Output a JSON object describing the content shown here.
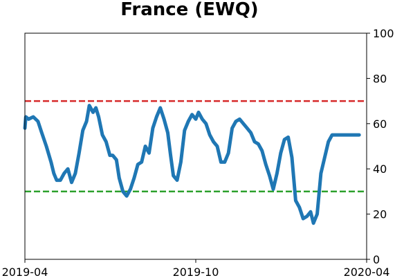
{
  "chart_data": {
    "type": "line",
    "title": "France (EWQ)",
    "xlabel": "",
    "ylabel": "",
    "x_ticks": [
      "2019-04",
      "2019-10",
      "2020-04"
    ],
    "y_ticks": [
      0,
      20,
      40,
      60,
      80,
      100
    ],
    "y_axis_side": "right",
    "xlim": [
      "2019-04-01",
      "2020-04-01"
    ],
    "ylim": [
      0,
      100
    ],
    "grid": false,
    "reference_lines": [
      {
        "value": 70,
        "color": "#d62728",
        "style": "dashed"
      },
      {
        "value": 30,
        "color": "#2ca02c",
        "style": "dashed"
      }
    ],
    "series": [
      {
        "color": "#1f77b4",
        "x": [
          "2019-04-01",
          "2019-04-02",
          "2019-04-05",
          "2019-04-10",
          "2019-04-15",
          "2019-04-19",
          "2019-04-24",
          "2019-04-29",
          "2019-05-02",
          "2019-05-05",
          "2019-05-09",
          "2019-05-13",
          "2019-05-17",
          "2019-05-21",
          "2019-05-25",
          "2019-05-29",
          "2019-06-02",
          "2019-06-06",
          "2019-06-09",
          "2019-06-13",
          "2019-06-16",
          "2019-06-19",
          "2019-06-23",
          "2019-06-27",
          "2019-07-01",
          "2019-07-04",
          "2019-07-08",
          "2019-07-11",
          "2019-07-15",
          "2019-07-19",
          "2019-07-23",
          "2019-07-27",
          "2019-07-31",
          "2019-08-04",
          "2019-08-08",
          "2019-08-12",
          "2019-08-16",
          "2019-08-20",
          "2019-08-24",
          "2019-08-28",
          "2019-09-01",
          "2019-09-04",
          "2019-09-07",
          "2019-09-11",
          "2019-09-15",
          "2019-09-19",
          "2019-09-23",
          "2019-09-27",
          "2019-10-01",
          "2019-10-04",
          "2019-10-08",
          "2019-10-12",
          "2019-10-16",
          "2019-10-20",
          "2019-10-24",
          "2019-10-28",
          "2019-11-01",
          "2019-11-05",
          "2019-11-09",
          "2019-11-13",
          "2019-11-17",
          "2019-11-21",
          "2019-11-25",
          "2019-11-29",
          "2019-12-03",
          "2019-12-07",
          "2019-12-11",
          "2019-12-15",
          "2019-12-19",
          "2019-12-23",
          "2019-12-27",
          "2019-12-31",
          "2020-01-04",
          "2020-01-08",
          "2020-01-12",
          "2020-01-16",
          "2020-01-20",
          "2020-01-24",
          "2020-01-28",
          "2020-02-01",
          "2020-02-04",
          "2020-02-08",
          "2020-02-12",
          "2020-02-16",
          "2020-02-20",
          "2020-02-24",
          "2020-02-28",
          "2020-03-03",
          "2020-03-07",
          "2020-03-11",
          "2020-03-15",
          "2020-03-19",
          "2020-03-24"
        ],
        "values": [
          58,
          63,
          62,
          63,
          61,
          56,
          50,
          43,
          38,
          35,
          35,
          38,
          40,
          34,
          38,
          47,
          57,
          61,
          68,
          65,
          67,
          63,
          55,
          52,
          46,
          46,
          44,
          36,
          30,
          28,
          31,
          36,
          42,
          43,
          50,
          47,
          58,
          63,
          67,
          62,
          56,
          46,
          37,
          35,
          43,
          57,
          61,
          64,
          62,
          65,
          62,
          60,
          55,
          52,
          50,
          43,
          43,
          47,
          58,
          61,
          62,
          60,
          58,
          56,
          52,
          51,
          48,
          42,
          37,
          31,
          38,
          47,
          53,
          54,
          45,
          26,
          23,
          18,
          19,
          21,
          16,
          20,
          38,
          45,
          52,
          55,
          55,
          55,
          55,
          55,
          55,
          55,
          55
        ]
      }
    ]
  }
}
